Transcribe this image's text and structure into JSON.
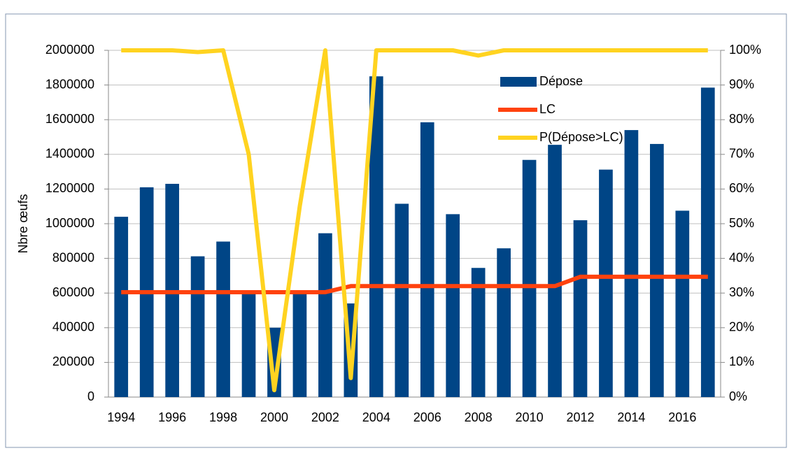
{
  "chart_data": {
    "type": "bar-line",
    "y_label": "Nbre œufs",
    "categories": [
      "1994",
      null,
      "1996",
      null,
      "1998",
      null,
      "2000",
      null,
      "2002",
      null,
      "2004",
      null,
      "2006",
      null,
      "2008",
      null,
      "2010",
      null,
      "2012",
      null,
      "2014",
      null,
      "2016",
      null
    ],
    "series": [
      {
        "name": "Dépose",
        "type": "bar",
        "color": "#004586",
        "values": [
          1040000,
          1210000,
          1230000,
          812000,
          897000,
          605000,
          400000,
          598000,
          945000,
          540000,
          1850000,
          1115000,
          1585000,
          1055000,
          745000,
          858000,
          1368000,
          1455000,
          1020000,
          1312000,
          1540000,
          1460000,
          1075000,
          1785000
        ]
      },
      {
        "name": "LC",
        "type": "line",
        "color": "#ff420e",
        "values": [
          605000,
          605000,
          605000,
          605000,
          605000,
          605000,
          605000,
          605000,
          605000,
          640000,
          640000,
          640000,
          640000,
          640000,
          640000,
          640000,
          640000,
          640000,
          694000,
          694000,
          694000,
          694000,
          694000,
          694000
        ]
      },
      {
        "name": "P(Dépose>LC)",
        "type": "line",
        "axis": "y2",
        "color": "#ffd320",
        "values": [
          100,
          100,
          100,
          99.5,
          100,
          70,
          2,
          55,
          100,
          5.5,
          100,
          100,
          100,
          100,
          98.5,
          100,
          100,
          100,
          100,
          100,
          100,
          100,
          100,
          100
        ]
      }
    ],
    "ylim": [
      0,
      2000000
    ],
    "yticks": [
      0,
      200000,
      400000,
      600000,
      800000,
      1000000,
      1200000,
      1400000,
      1600000,
      1800000,
      2000000
    ],
    "y2lim": [
      0,
      100
    ],
    "y2ticks": [
      {
        "value": 0,
        "label": "0%"
      },
      {
        "value": 10,
        "label": "10%"
      },
      {
        "value": 20,
        "label": "20%"
      },
      {
        "value": 30,
        "label": "30%"
      },
      {
        "value": 40,
        "label": "40%"
      },
      {
        "value": 50,
        "label": "50%"
      },
      {
        "value": 60,
        "label": "60%"
      },
      {
        "value": 70,
        "label": "70%"
      },
      {
        "value": 80,
        "label": "80%"
      },
      {
        "value": 90,
        "label": "90%"
      },
      {
        "value": 100,
        "label": "100%"
      }
    ],
    "grid": true
  }
}
